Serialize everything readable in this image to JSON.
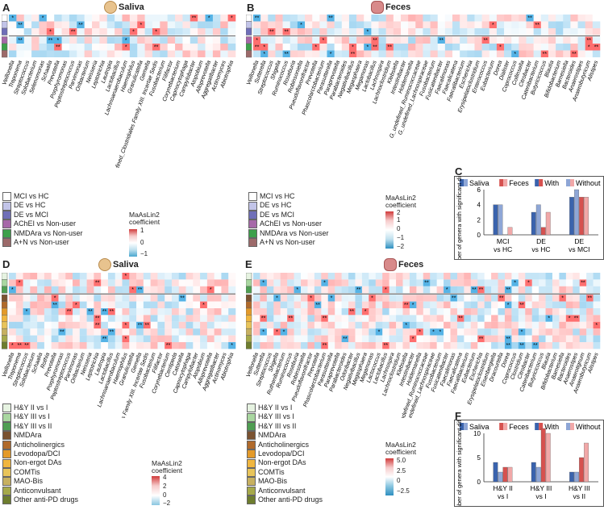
{
  "panels": {
    "A": {
      "letter": "A",
      "title": "Saliva",
      "icon": "saliva-face-icon"
    },
    "B": {
      "letter": "B",
      "title": "Feces",
      "icon": "intestine-icon"
    },
    "C": {
      "letter": "C"
    },
    "D": {
      "letter": "D",
      "title": "Saliva",
      "icon": "saliva-face-icon"
    },
    "E": {
      "letter": "E",
      "title": "Feces",
      "icon": "intestine-icon"
    },
    "F": {
      "letter": "F"
    }
  },
  "legend_top": {
    "items": [
      {
        "label": "MCI vs HC",
        "color": "#ffffff"
      },
      {
        "label": "DE vs HC",
        "color": "#c2c4e8"
      },
      {
        "label": "DE vs MCI",
        "color": "#6f6fb8"
      },
      {
        "label": "AChEI vs Non-user",
        "color": "#a668a8"
      },
      {
        "label": "NMDAra vs Non-user",
        "color": "#3da04b"
      },
      {
        "label": "A+N vs Non-user",
        "color": "#9c6a6a"
      }
    ]
  },
  "legend_bottom": {
    "items": [
      {
        "label": "H&Y II vs I",
        "color": "#e6f3e1"
      },
      {
        "label": "H&Y III vs I",
        "color": "#a9d7a0"
      },
      {
        "label": "H&Y III vs II",
        "color": "#4f9e52"
      },
      {
        "label": "NMDAra",
        "color": "#7a5231"
      },
      {
        "label": "Anticholinergics",
        "color": "#b06a2b"
      },
      {
        "label": "Levodopa/DCI",
        "color": "#e39a2a"
      },
      {
        "label": "Non-ergot DAs",
        "color": "#f0b63f"
      },
      {
        "label": "COMTis",
        "color": "#e8c45a"
      },
      {
        "label": "MAO-Bis",
        "color": "#c7b060"
      },
      {
        "label": "Anticonvulsant",
        "color": "#a6a94a"
      },
      {
        "label": "Other anti-PD drugs",
        "color": "#6e7d2e"
      }
    ]
  },
  "colorbar_top": {
    "title1": "MaAsLin2",
    "title2": "coefficient",
    "ticks": [
      "2",
      "1",
      "0",
      "−1",
      "−2"
    ],
    "small_ticks": [
      "1",
      "0",
      "−1"
    ]
  },
  "colorbar_bottom": {
    "title1": "MaAsLin2",
    "title2": "coefficient",
    "ticks_D": [
      "4",
      "2",
      "0",
      "−2"
    ],
    "ticks_E": [
      "5.0",
      "2.5",
      "0",
      "−2.5"
    ]
  },
  "heatmaps": {
    "A": {
      "genera": [
        "Veillonella",
        "Treponema",
        "Streptococcus",
        "Solobacterium",
        "Selenomonas",
        "Schaalia",
        "Prevotella",
        "Porphyromonas",
        "Peptostreptococcus",
        "Parvimonas",
        "Oribacterium",
        "Neisseria",
        "Leptotrichia",
        "Lautropia",
        "Lactobacillus",
        "Lachnoanaerobaculum",
        "Haemophilus",
        "Granulicatella",
        "Gemella",
        "G_undefined_Clostridiales Family XIII. Incertae Sedis",
        "Fusobacterium",
        "Filifactor",
        "Corynebacterium",
        "Capnocytophaga",
        "Campylobacter",
        "Atopobium",
        "Alloprevotella",
        "Aggregatibacter",
        "Actinomyces",
        "Abiotrophia"
      ]
    },
    "B": {
      "genera": [
        "Veillonella",
        "Sutterella",
        "Streptococcus",
        "Shigella",
        "Ruminococcus",
        "Roseburia",
        "Robinsoniella",
        "Pseudoflavonifractor",
        "Prevotella",
        "Phascolarctobacterium",
        "Parasutterella",
        "Paraprevotella",
        "Parabacteroides",
        "Negativibacillus",
        "Megasphaera",
        "Megamonas",
        "Lactobacillus",
        "Lachnospira",
        "Lachnoclostridium",
        "Klebsiella",
        "Intestinibacter",
        "Holdemanella",
        "G_undefined_Ruminococcaceae",
        "G_undefined_Lachnospiraceae",
        "Fusobacterium",
        "Fusicatenibacter",
        "Faecalimonas",
        "Faecalicatena",
        "Faecalibacterium",
        "Escherichia",
        "Erysipelatoclostridium",
        "Enterococcus",
        "Eubacterium",
        "Dorea",
        "Dialister",
        "Coprococcus",
        "Collinsella",
        "Citrobacter",
        "Catenibacterium",
        "Butyricicoccus",
        "Blautia",
        "Bifidobacterium",
        "Barnesiella",
        "Bacteroides",
        "Anaerostipes",
        "Anaerobutyricum",
        "Alistipes"
      ]
    },
    "D": {
      "genera": [
        "Veillonella",
        "Treponema",
        "Streptococcus",
        "Solobacterium",
        "Schaalia",
        "Rothia",
        "Prevotella",
        "Porphyromonas",
        "Peptostreptococcus",
        "Parvimonas",
        "Oribacterium",
        "Neisseria",
        "Leptotrichia",
        "Lautropia",
        "Lactobacillus",
        "Lachnoanaerobaculum",
        "Haemophilus",
        "Granulicatella",
        "Gemella",
        "G_undefined_Clostridiales Family XIII. Incertae Sedis",
        "Fusobacterium",
        "Filifactor",
        "Corynebacterium",
        "Centipeda",
        "Catonella",
        "Capnocytophaga",
        "Campylobacter",
        "Atopobium",
        "Alloprevotella",
        "Aggregatibacter",
        "Actinomyces",
        "Abiotrophia"
      ]
    },
    "E": {
      "genera": [
        "Veillonella",
        "Sutterella",
        "Streptococcus",
        "Shigella",
        "Ruthenibacterium",
        "Ruminococcus",
        "Roseburia",
        "Robinsoniella",
        "Pseudoflavonifractor",
        "Prevotella",
        "Phascolarctobacterium",
        "Parasutterella",
        "Paraprevotella",
        "Parabacteroides",
        "Odoribacter",
        "Negativibacillus",
        "Megasphaera",
        "Megamonas",
        "Lactococcus",
        "Lactobacillus",
        "Lachnospira",
        "Lachnoclostridium",
        "Klebsiella",
        "Intestinibacter",
        "Holdemanella",
        "G_undefined_Ruminococcaceae",
        "G_undefined_Lachnospiraceae",
        "Fusobacterium",
        "Fusicatenibacter",
        "Faecalimonas",
        "Faecalicatena",
        "Faecalibacterium",
        "Eubacterium",
        "Escherichia",
        "Erysipelatoclostridium",
        "Eisenbergiella",
        "Dracourtella",
        "Dorea",
        "Coprococcus",
        "Clostridium",
        "Citrobacter",
        "Catenibacterium",
        "Butyricicoccus",
        "Blautia",
        "Bifidobacterium",
        "Barnesiella",
        "Bacteroides",
        "Anaerostipes",
        "Anaerotignum",
        "Anaerobutyricum",
        "Alistipes"
      ]
    }
  },
  "chart_data": [
    {
      "type": "bar",
      "panel": "C",
      "title": "",
      "ylabel": "Number of genera with significant differences",
      "categories": [
        "MCI vs HC",
        "DE vs HC",
        "DE vs MCI"
      ],
      "ylim": [
        0,
        6
      ],
      "yticks": [
        "0",
        "2",
        "4",
        "6"
      ],
      "legend": [
        "Saliva",
        "Feces",
        "With",
        "Without"
      ],
      "series": [
        {
          "name": "Saliva-With",
          "color": "#3a63ad",
          "values": [
            4,
            3,
            5
          ]
        },
        {
          "name": "Saliva-Without",
          "color": "#8ea6d6",
          "values": [
            4,
            4,
            6
          ]
        },
        {
          "name": "Feces-With",
          "color": "#d6514f",
          "values": [
            0,
            1,
            5
          ]
        },
        {
          "name": "Feces-Without",
          "color": "#f1a8a8",
          "values": [
            1,
            3,
            5
          ]
        }
      ]
    },
    {
      "type": "bar",
      "panel": "F",
      "title": "",
      "ylabel": "Number of genera with significant differences",
      "categories": [
        "H&Y II vs I",
        "H&Y III vs I",
        "H&Y III vs II"
      ],
      "ylim": [
        0,
        10
      ],
      "yticks": [
        "0",
        "5",
        "10"
      ],
      "legend": [
        "Saliva",
        "Feces",
        "With",
        "Without"
      ],
      "series": [
        {
          "name": "Saliva-With",
          "color": "#3a63ad",
          "values": [
            4,
            4,
            2
          ]
        },
        {
          "name": "Saliva-Without",
          "color": "#8ea6d6",
          "values": [
            2,
            3,
            2
          ]
        },
        {
          "name": "Feces-With",
          "color": "#d6514f",
          "values": [
            3,
            11,
            5
          ]
        },
        {
          "name": "Feces-Without",
          "color": "#f1a8a8",
          "values": [
            3,
            10,
            8
          ]
        }
      ]
    }
  ]
}
